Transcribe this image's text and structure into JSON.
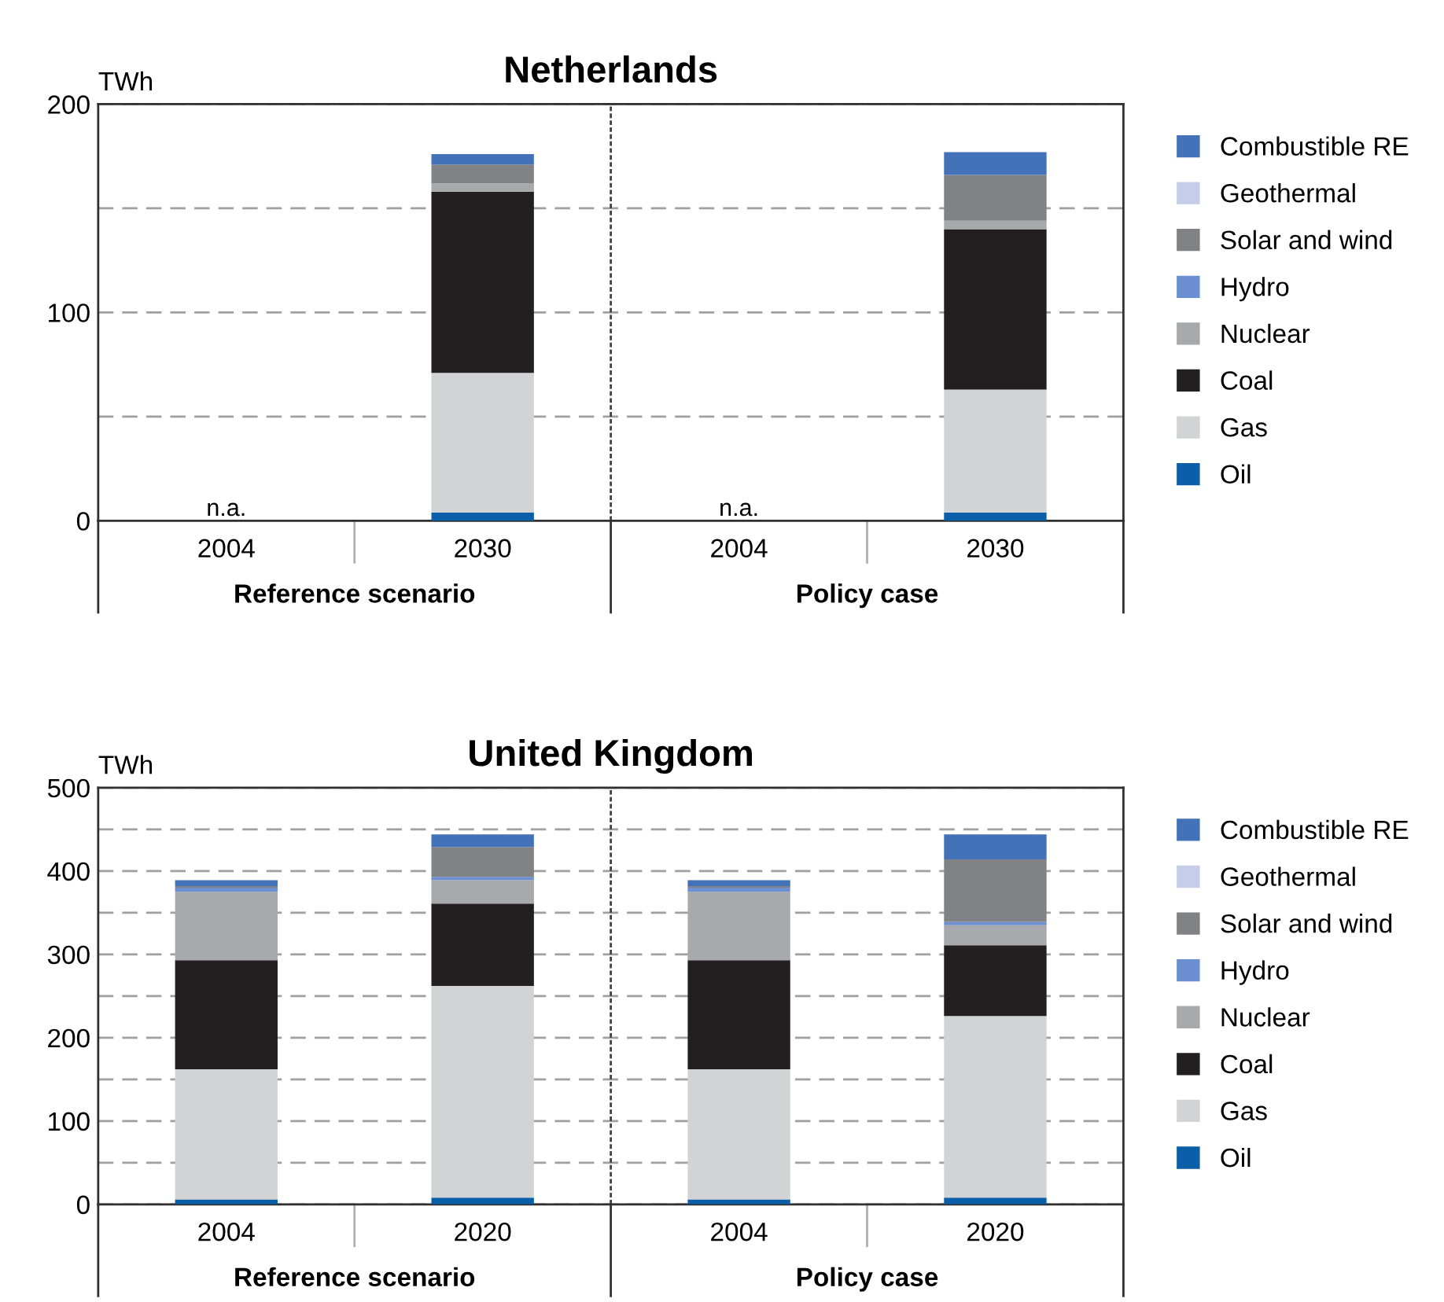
{
  "chart_data": [
    {
      "type": "bar",
      "title": "Netherlands",
      "ylabel": "TWh",
      "stacked": true,
      "categories": [
        "2004",
        "2030",
        "2004",
        "2030"
      ],
      "ylim": [
        0,
        200
      ],
      "yticks": [
        0,
        {
          "value": 50,
          "label": null
        },
        100,
        {
          "value": 150,
          "label": null
        },
        200
      ],
      "grid": "y",
      "legend": "right",
      "annotations": [
        "Reference scenario",
        "Policy case"
      ],
      "series": [
        {
          "name": "Oil",
          "color": "#0a5fa8",
          "values": [
            null,
            4,
            null,
            4
          ],
          "value_labels": [
            "n.a.",
            null,
            "n.a.",
            null
          ]
        },
        {
          "name": "Gas",
          "color": "#d1d3d4",
          "values": [
            null,
            67,
            null,
            59
          ]
        },
        {
          "name": "Coal",
          "color": "#231f20",
          "values": [
            null,
            87,
            null,
            77
          ]
        },
        {
          "name": "Nuclear",
          "color": "#a7a9ac",
          "values": [
            null,
            4,
            null,
            4
          ]
        },
        {
          "name": "Hydro",
          "color": "#6b8fd0",
          "values": [
            null,
            0,
            null,
            0
          ]
        },
        {
          "name": "Solar and wind",
          "color": "#808285",
          "values": [
            null,
            9,
            null,
            22
          ]
        },
        {
          "name": "Geothermal",
          "color": "#c5cde9",
          "values": [
            null,
            0,
            null,
            0
          ]
        },
        {
          "name": "Combustible RE",
          "color": "#4472b8",
          "values": [
            null,
            5,
            null,
            11
          ]
        }
      ]
    },
    {
      "type": "bar",
      "title": "United Kingdom",
      "ylabel": "TWh",
      "stacked": true,
      "categories": [
        "2004",
        "2020",
        "2004",
        "2020"
      ],
      "ylim": [
        0,
        500
      ],
      "yticks": [
        0,
        {
          "value": 50,
          "label": null
        },
        100,
        {
          "value": 150,
          "label": null
        },
        200,
        {
          "value": 250,
          "label": null
        },
        300,
        {
          "value": 350,
          "label": null
        },
        400,
        {
          "value": 450,
          "label": null
        },
        500
      ],
      "grid": "y",
      "legend": "right",
      "annotations": [
        "Reference scenario",
        "Policy case"
      ],
      "series": [
        {
          "name": "Oil",
          "color": "#0a5fa8",
          "values": [
            6,
            8,
            6,
            8
          ]
        },
        {
          "name": "Gas",
          "color": "#d1d3d4",
          "values": [
            156,
            254,
            156,
            218
          ]
        },
        {
          "name": "Coal",
          "color": "#231f20",
          "values": [
            131,
            99,
            131,
            85
          ]
        },
        {
          "name": "Nuclear",
          "color": "#a7a9ac",
          "values": [
            82,
            28,
            82,
            24
          ]
        },
        {
          "name": "Hydro",
          "color": "#6b8fd0",
          "values": [
            5,
            4,
            5,
            4
          ]
        },
        {
          "name": "Solar and wind",
          "color": "#808285",
          "values": [
            2,
            36,
            2,
            75
          ]
        },
        {
          "name": "Geothermal",
          "color": "#c5cde9",
          "values": [
            0,
            0,
            0,
            0
          ]
        },
        {
          "name": "Combustible RE",
          "color": "#4472b8",
          "values": [
            7,
            15,
            7,
            30
          ]
        }
      ]
    }
  ]
}
